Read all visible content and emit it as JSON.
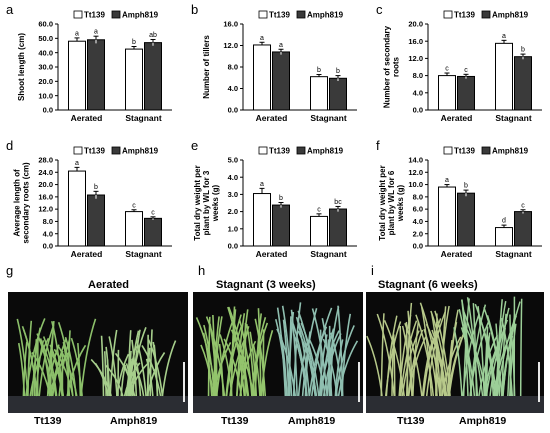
{
  "legend": [
    {
      "name": "Tt139",
      "color": "#ffffff"
    },
    {
      "name": "Amph819",
      "color": "#3a3a3a"
    }
  ],
  "chart_data": [
    {
      "panel": "a",
      "type": "bar",
      "categories": [
        "Aerated",
        "Stagnant"
      ],
      "ylabel": "Shoot length (cm)",
      "ylim": [
        0,
        60
      ],
      "yticks": [
        "0.0",
        "10.0",
        "20.0",
        "30.0",
        "40.0",
        "50.0",
        "60.0"
      ],
      "series": [
        {
          "name": "Tt139",
          "values": [
            48,
            42.5
          ],
          "errors": [
            2.3,
            1.8
          ],
          "letters": [
            "a",
            "b"
          ]
        },
        {
          "name": "Amph819",
          "values": [
            49,
            47
          ],
          "errors": [
            2.5,
            2.2
          ],
          "letters": [
            "a",
            "ab"
          ]
        }
      ]
    },
    {
      "panel": "b",
      "type": "bar",
      "categories": [
        "Aerated",
        "Stagnant"
      ],
      "ylabel": "Number of tillers",
      "ylim": [
        0,
        16
      ],
      "yticks": [
        "0.0",
        "4.0",
        "8.0",
        "12.0",
        "16.0"
      ],
      "series": [
        {
          "name": "Tt139",
          "values": [
            12.1,
            6.2
          ],
          "errors": [
            0.5,
            0.4
          ],
          "letters": [
            "a",
            "b"
          ]
        },
        {
          "name": "Amph819",
          "values": [
            10.8,
            5.9
          ],
          "errors": [
            0.5,
            0.5
          ],
          "letters": [
            "a",
            "b"
          ]
        }
      ]
    },
    {
      "panel": "c",
      "type": "bar",
      "categories": [
        "Aerated",
        "Stagnant"
      ],
      "ylabel": "Number of secondary roots",
      "ylim": [
        0,
        20
      ],
      "yticks": [
        "0.0",
        "4.0",
        "8.0",
        "12.0",
        "16.0",
        "20.0"
      ],
      "series": [
        {
          "name": "Tt139",
          "values": [
            8.0,
            15.5
          ],
          "errors": [
            0.6,
            0.7
          ],
          "letters": [
            "c",
            "a"
          ]
        },
        {
          "name": "Amph819",
          "values": [
            7.8,
            12.4
          ],
          "errors": [
            0.5,
            0.6
          ],
          "letters": [
            "c",
            "b"
          ]
        }
      ]
    },
    {
      "panel": "d",
      "type": "bar",
      "categories": [
        "Aerated",
        "Stagnant"
      ],
      "ylabel": "Average length of secondary roots (cm)",
      "ylim": [
        0,
        28
      ],
      "yticks": [
        "0.0",
        "4.0",
        "8.0",
        "12.0",
        "16.0",
        "20.0",
        "24.0",
        "28.0"
      ],
      "series": [
        {
          "name": "Tt139",
          "values": [
            24.4,
            11.2
          ],
          "errors": [
            1.2,
            0.6
          ],
          "letters": [
            "a",
            "c"
          ]
        },
        {
          "name": "Amph819",
          "values": [
            16.6,
            9.0
          ],
          "errors": [
            1.2,
            0.5
          ],
          "letters": [
            "b",
            "c"
          ]
        }
      ]
    },
    {
      "panel": "e",
      "type": "bar",
      "categories": [
        "Aerated",
        "Stagnant"
      ],
      "ylabel": "Total dry weight per plant by WL for 3 weeks (g)",
      "ylim": [
        0,
        5
      ],
      "yticks": [
        "0.0",
        "1.0",
        "2.0",
        "3.0",
        "4.0",
        "5.0"
      ],
      "series": [
        {
          "name": "Tt139",
          "values": [
            3.05,
            1.72
          ],
          "errors": [
            0.3,
            0.15
          ],
          "letters": [
            "a",
            "c"
          ]
        },
        {
          "name": "Amph819",
          "values": [
            2.38,
            2.15
          ],
          "errors": [
            0.15,
            0.15
          ],
          "letters": [
            "b",
            "bc"
          ]
        }
      ]
    },
    {
      "panel": "f",
      "type": "bar",
      "categories": [
        "Aerated",
        "Stagnant"
      ],
      "ylabel": "Total dry weight per plant by WL for 6 weeks (g)",
      "ylim": [
        0,
        14
      ],
      "yticks": [
        "0.0",
        "2.0",
        "4.0",
        "6.0",
        "8.0",
        "10.0",
        "12.0",
        "14.0"
      ],
      "series": [
        {
          "name": "Tt139",
          "values": [
            9.6,
            3.0
          ],
          "errors": [
            0.4,
            0.4
          ],
          "letters": [
            "a",
            "d"
          ]
        },
        {
          "name": "Amph819",
          "values": [
            8.6,
            5.6
          ],
          "errors": [
            0.5,
            0.3
          ],
          "letters": [
            "b",
            "c"
          ]
        }
      ]
    }
  ],
  "photos": [
    {
      "panel": "g",
      "title": "Aerated",
      "left_label": "Tt139",
      "right_label": "Amph819"
    },
    {
      "panel": "h",
      "title": "Stagnant (3 weeks)",
      "left_label": "Tt139",
      "right_label": "Amph819"
    },
    {
      "panel": "i",
      "title": "Stagnant (6 weeks)",
      "left_label": "Tt139",
      "right_label": "Amph819"
    }
  ]
}
